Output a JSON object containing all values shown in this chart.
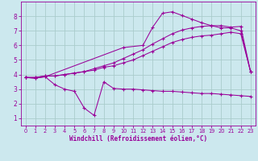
{
  "xlabel": "Windchill (Refroidissement éolien,°C)",
  "bg_color": "#cce8ee",
  "grid_color": "#aacccc",
  "line_color": "#990099",
  "xlim": [
    -0.5,
    23.5
  ],
  "ylim": [
    0.5,
    9.0
  ],
  "xticks": [
    0,
    1,
    2,
    3,
    4,
    5,
    6,
    7,
    8,
    9,
    10,
    11,
    12,
    13,
    14,
    15,
    16,
    17,
    18,
    19,
    20,
    21,
    22,
    23
  ],
  "yticks": [
    1,
    2,
    3,
    4,
    5,
    6,
    7,
    8
  ],
  "line_straight1_x": [
    0,
    1,
    2,
    3,
    4,
    5,
    6,
    7,
    8,
    9,
    10,
    11,
    12,
    13,
    14,
    15,
    16,
    17,
    18,
    19,
    20,
    21,
    22,
    23
  ],
  "line_straight1_y": [
    3.8,
    3.8,
    3.9,
    3.9,
    4.0,
    4.1,
    4.2,
    4.3,
    4.5,
    4.6,
    4.8,
    5.0,
    5.3,
    5.6,
    5.9,
    6.2,
    6.4,
    6.55,
    6.65,
    6.7,
    6.8,
    6.9,
    6.8,
    4.2
  ],
  "line_straight2_x": [
    0,
    1,
    2,
    3,
    4,
    5,
    6,
    7,
    8,
    9,
    10,
    11,
    12,
    13,
    14,
    15,
    16,
    17,
    18,
    19,
    20,
    21,
    22,
    23
  ],
  "line_straight2_y": [
    3.8,
    3.8,
    3.9,
    3.9,
    4.0,
    4.1,
    4.2,
    4.4,
    4.6,
    4.8,
    5.1,
    5.4,
    5.7,
    6.1,
    6.45,
    6.8,
    7.05,
    7.2,
    7.3,
    7.35,
    7.35,
    7.25,
    7.3,
    4.2
  ],
  "line_peak_x": [
    0,
    1,
    2,
    10,
    12,
    13,
    14,
    15,
    16,
    17,
    18,
    19,
    20,
    21,
    22,
    23
  ],
  "line_peak_y": [
    3.8,
    3.75,
    3.85,
    5.85,
    6.0,
    7.25,
    8.2,
    8.3,
    8.05,
    7.8,
    7.55,
    7.35,
    7.2,
    7.2,
    7.0,
    4.2
  ],
  "line_low_x": [
    0,
    1,
    2,
    3,
    4,
    5,
    6,
    7,
    8,
    9,
    10,
    11,
    12,
    13,
    14,
    15,
    16,
    17,
    18,
    19,
    20,
    21,
    22,
    23
  ],
  "line_low_y": [
    3.8,
    3.75,
    3.85,
    3.3,
    3.0,
    2.85,
    1.7,
    1.2,
    3.5,
    3.05,
    3.0,
    3.0,
    2.95,
    2.9,
    2.85,
    2.85,
    2.8,
    2.75,
    2.7,
    2.7,
    2.65,
    2.6,
    2.55,
    2.5
  ]
}
